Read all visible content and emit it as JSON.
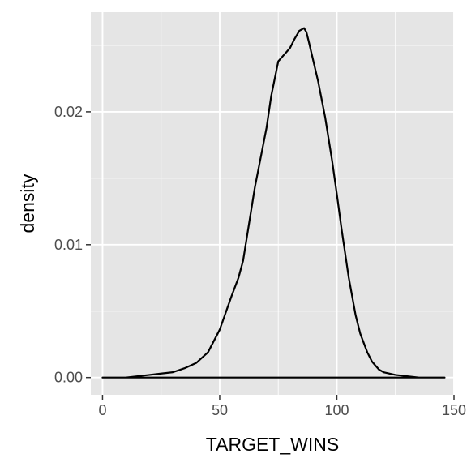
{
  "chart_data": {
    "type": "area",
    "title": "",
    "xlabel": "TARGET_WINS",
    "ylabel": "density",
    "xlim": [
      -5,
      150
    ],
    "ylim": [
      -0.0013,
      0.0275
    ],
    "x_ticks": [
      0,
      50,
      100,
      150
    ],
    "x_tick_labels": [
      "0",
      "50",
      "100",
      "150"
    ],
    "y_ticks": [
      0.0,
      0.01,
      0.02
    ],
    "y_tick_labels": [
      "0.00",
      "0.01",
      "0.02"
    ],
    "grid": true,
    "legend": "none",
    "colors": {
      "panel": "#e5e5e5",
      "grid": "#ffffff",
      "line": "#000000",
      "tick_text": "#4d4d4d",
      "axis_title": "#000000"
    },
    "series": [
      {
        "x": [
          0,
          5,
          10,
          15,
          20,
          25,
          30,
          35,
          40,
          45,
          50,
          52,
          55,
          58,
          60,
          62,
          65,
          68,
          70,
          72,
          75,
          77,
          78,
          80,
          82,
          84,
          86,
          87,
          88,
          90,
          92,
          95,
          98,
          100,
          102,
          105,
          108,
          110,
          113,
          115,
          118,
          120,
          125,
          130,
          135,
          140,
          146
        ],
        "y": [
          0.0,
          0.0,
          0.0,
          0.0001,
          0.0002,
          0.0003,
          0.0004,
          0.0007,
          0.0011,
          0.0019,
          0.0036,
          0.0046,
          0.0061,
          0.0075,
          0.0088,
          0.011,
          0.0143,
          0.017,
          0.0188,
          0.0212,
          0.0238,
          0.0242,
          0.0244,
          0.0248,
          0.0255,
          0.0261,
          0.0263,
          0.026,
          0.0253,
          0.0238,
          0.0223,
          0.0196,
          0.0163,
          0.0138,
          0.0112,
          0.0076,
          0.0047,
          0.0033,
          0.0019,
          0.0012,
          0.0006,
          0.0004,
          0.0002,
          0.0001,
          0.0,
          0.0,
          0.0
        ]
      }
    ]
  }
}
